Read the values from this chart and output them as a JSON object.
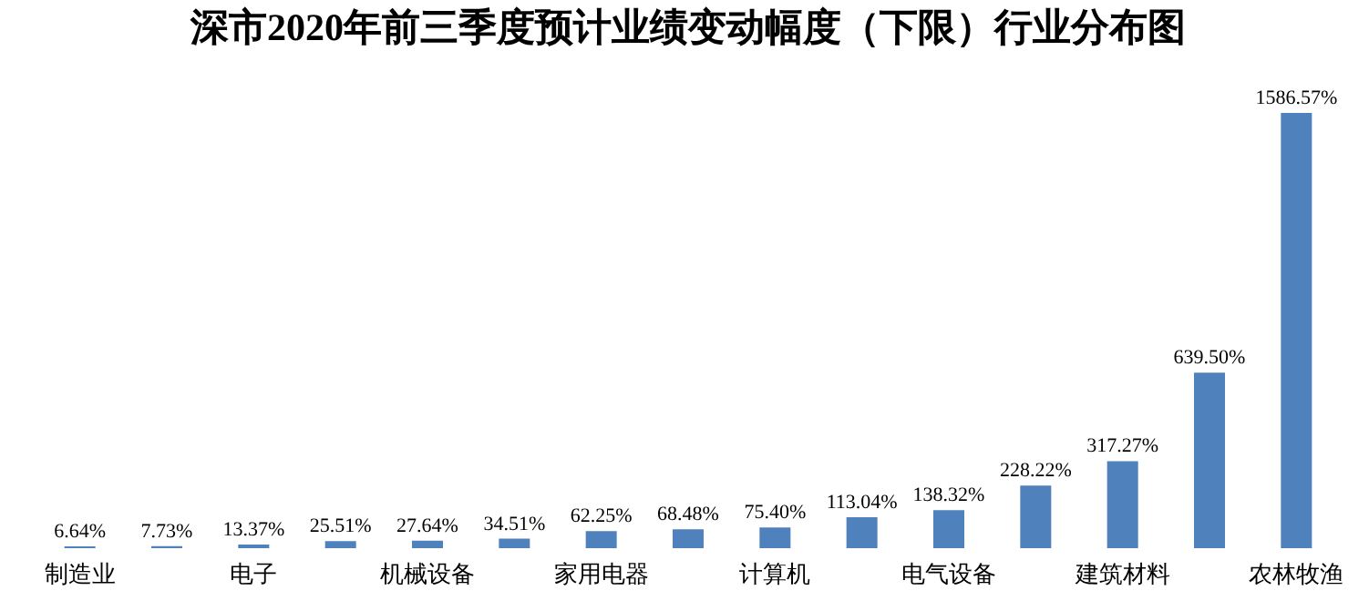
{
  "chart_data": {
    "type": "bar",
    "title": "深市2020年前三季度预计业绩变动幅度（下限）行业分布图",
    "categories": [
      "制造业",
      null,
      "电子",
      null,
      "机械设备",
      null,
      "家用电器",
      null,
      "计算机",
      null,
      "电气设备",
      null,
      "建筑材料",
      null,
      "农林牧渔"
    ],
    "values": [
      6.64,
      7.73,
      13.37,
      25.51,
      27.64,
      34.51,
      62.25,
      68.48,
      75.4,
      113.04,
      138.32,
      228.22,
      317.27,
      639.5,
      1586.57
    ],
    "value_labels": [
      "6.64%",
      "7.73%",
      "13.37%",
      "25.51%",
      "27.64%",
      "34.51%",
      "62.25%",
      "68.48%",
      "75.40%",
      "113.04%",
      "138.32%",
      "228.22%",
      "317.27%",
      "639.50%",
      "1586.57%"
    ],
    "color": "#4f81bd"
  }
}
